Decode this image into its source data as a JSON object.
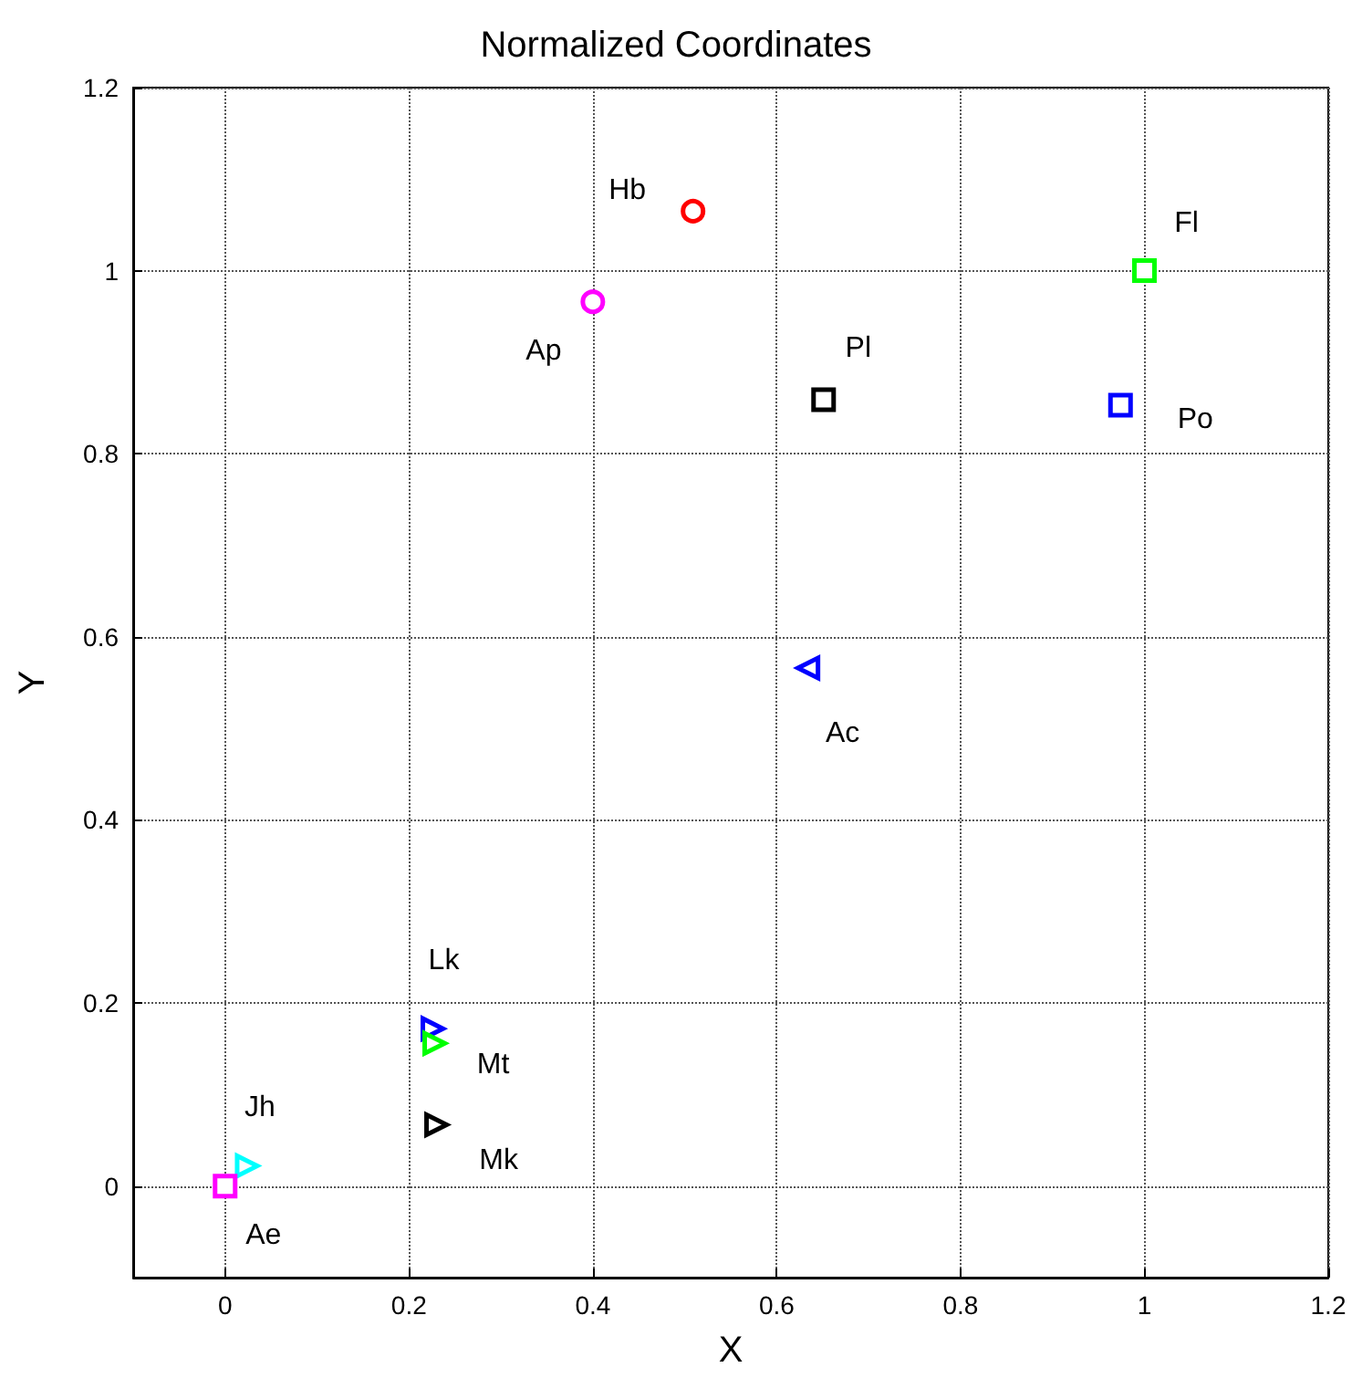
{
  "chart_data": {
    "type": "scatter",
    "title": "Normalized Coordinates",
    "xlabel": "X",
    "ylabel": "Y",
    "xlim": [
      -0.1,
      1.2
    ],
    "ylim": [
      -0.1,
      1.2
    ],
    "xticks": [
      0,
      0.2,
      0.4,
      0.6,
      0.8,
      1,
      1.2
    ],
    "yticks": [
      0,
      0.2,
      0.4,
      0.6,
      0.8,
      1,
      1.2
    ],
    "grid": true,
    "legend": false,
    "series": [
      {
        "name": "Hb",
        "color": "#ff0000",
        "marker": "circle",
        "x": [
          0.509
        ],
        "values": [
          1.065
        ]
      },
      {
        "name": "Ap",
        "color": "#ff00ff",
        "marker": "circle",
        "x": [
          0.4
        ],
        "values": [
          0.966
        ]
      },
      {
        "name": "Fl",
        "color": "#00ff00",
        "marker": "square",
        "x": [
          1.0
        ],
        "values": [
          1.0
        ]
      },
      {
        "name": "Pl",
        "color": "#000000",
        "marker": "square",
        "x": [
          0.651
        ],
        "values": [
          0.859
        ]
      },
      {
        "name": "Po",
        "color": "#0000ff",
        "marker": "square",
        "x": [
          0.974
        ],
        "values": [
          0.853
        ]
      },
      {
        "name": "Ac",
        "color": "#0000ff",
        "marker": "triangle",
        "x": [
          0.634
        ],
        "values": [
          0.566
        ]
      },
      {
        "name": "Lk",
        "color": "#0000ff",
        "marker": "triangle",
        "x": [
          0.226
        ],
        "values": [
          0.172
        ]
      },
      {
        "name": "Mt",
        "color": "#00ff00",
        "marker": "triangle",
        "x": [
          0.228
        ],
        "values": [
          0.156
        ]
      },
      {
        "name": "Mk",
        "color": "#000000",
        "marker": "triangle",
        "x": [
          0.23
        ],
        "values": [
          0.067
        ]
      },
      {
        "name": "Jh",
        "color": "#00ffff",
        "marker": "triangle",
        "x": [
          0.024
        ],
        "values": [
          0.022
        ]
      },
      {
        "name": "Ae",
        "color": "#ff00ff",
        "marker": "square",
        "x": [
          0
        ],
        "values": [
          0
        ]
      }
    ]
  }
}
